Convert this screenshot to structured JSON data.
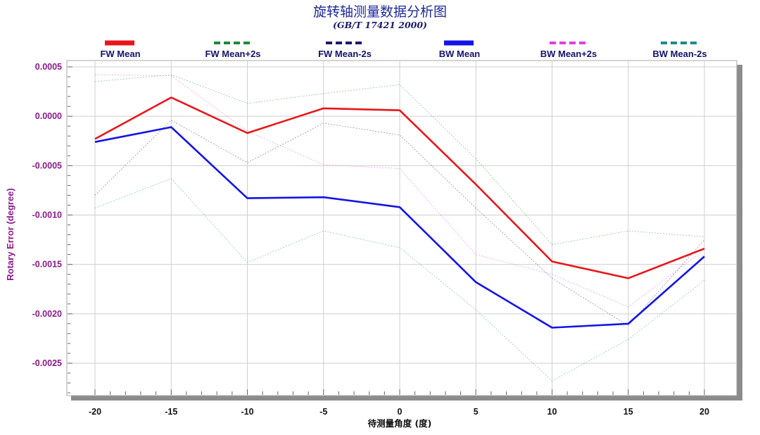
{
  "chart_data": {
    "type": "line",
    "title": "旋转轴测量数据分析图",
    "subtitle": "(GB/T 17421 2000)",
    "xlabel": "待测量角度 (度)",
    "ylabel": "Rotary Error (degree)",
    "x": [
      -20,
      -15,
      -10,
      -5,
      0,
      5,
      10,
      15,
      20
    ],
    "xlim": [
      -20,
      20
    ],
    "xticks": [
      "-20",
      "-15",
      "-10",
      "-5",
      "0",
      "5",
      "10",
      "15",
      "20"
    ],
    "ylim": [
      -0.0029,
      0.0005
    ],
    "yticks": [
      {
        "value": 0.0005,
        "label": "0.0005"
      },
      {
        "value": 0.0,
        "label": "0.0000"
      },
      {
        "value": -0.0005,
        "label": "-0.0005"
      },
      {
        "value": -0.001,
        "label": "-0.0010"
      },
      {
        "value": -0.0015,
        "label": "-0.0015"
      },
      {
        "value": -0.002,
        "label": "-0.0020"
      },
      {
        "value": -0.0025,
        "label": "-0.0025"
      }
    ],
    "grid": true,
    "legend_position": "top",
    "series": [
      {
        "name": "FW Mean",
        "color": "#e8161b",
        "style": "solid-bold",
        "values": [
          -0.00023,
          0.00019,
          -0.00017,
          8e-05,
          6e-05,
          -0.00069,
          -0.00147,
          -0.00164,
          -0.00134
        ]
      },
      {
        "name": "FW Mean+2s",
        "color": "#1f8a3a",
        "style": "dashed",
        "values": [
          0.00035,
          0.00042,
          0.00013,
          0.00023,
          0.00032,
          -0.00043,
          -0.0013,
          -0.00116,
          -0.00122
        ]
      },
      {
        "name": "FW Mean-2s",
        "color": "#1a1a6e",
        "style": "dashed",
        "values": [
          -0.0008,
          -4e-05,
          -0.00047,
          -7e-05,
          -0.00019,
          -0.00093,
          -0.00164,
          -0.00212,
          -0.00125
        ]
      },
      {
        "name": "BW Mean",
        "color": "#1414e6",
        "style": "solid-bold",
        "values": [
          -0.00026,
          -0.00011,
          -0.00083,
          -0.00082,
          -0.00092,
          -0.00168,
          -0.00214,
          -0.0021,
          -0.00142
        ]
      },
      {
        "name": "BW Mean+2s",
        "color": "#e040e0",
        "style": "dashed",
        "values": [
          0.00042,
          0.00041,
          -0.00015,
          -0.00049,
          -0.00053,
          -0.0014,
          -0.0016,
          -0.00193,
          -0.00135
        ]
      },
      {
        "name": "BW Mean-2s",
        "color": "#1f8a8a",
        "style": "dashed",
        "values": [
          -0.00093,
          -0.00063,
          -0.00148,
          -0.00116,
          -0.00133,
          -0.00196,
          -0.00268,
          -0.00226,
          -0.00166
        ]
      }
    ]
  }
}
